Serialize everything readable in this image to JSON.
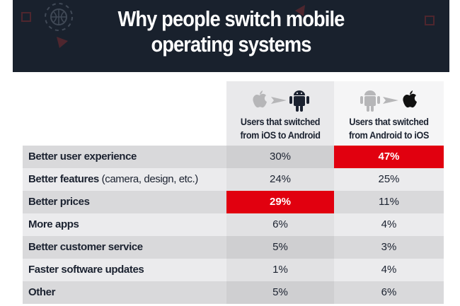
{
  "title_line1": "Why people switch mobile",
  "title_line2": "operating systems",
  "columns": [
    {
      "line1": "Users that switched",
      "line2": "from iOS to Android",
      "from_icon": "apple-icon",
      "to_icon": "android-icon"
    },
    {
      "line1": "Users that switched",
      "line2": "from Android to iOS",
      "from_icon": "android-icon",
      "to_icon": "apple-icon"
    }
  ],
  "colors": {
    "highlight": "#e1000f",
    "banner": "#19212d"
  },
  "rows": [
    {
      "label": "Better user experience",
      "note": "",
      "ios_to_android": "30%",
      "android_to_ios": "47%",
      "highlight": "android_to_ios"
    },
    {
      "label": "Better features",
      "note": " (camera, design, etc.)",
      "ios_to_android": "24%",
      "android_to_ios": "25%",
      "highlight": ""
    },
    {
      "label": "Better prices",
      "note": "",
      "ios_to_android": "29%",
      "android_to_ios": "11%",
      "highlight": "ios_to_android"
    },
    {
      "label": "More apps",
      "note": "",
      "ios_to_android": "6%",
      "android_to_ios": "4%",
      "highlight": ""
    },
    {
      "label": "Better customer service",
      "note": "",
      "ios_to_android": "5%",
      "android_to_ios": "3%",
      "highlight": ""
    },
    {
      "label": "Faster software updates",
      "note": "",
      "ios_to_android": "1%",
      "android_to_ios": "4%",
      "highlight": ""
    },
    {
      "label": "Other",
      "note": "",
      "ios_to_android": "5%",
      "android_to_ios": "6%",
      "highlight": ""
    }
  ]
}
